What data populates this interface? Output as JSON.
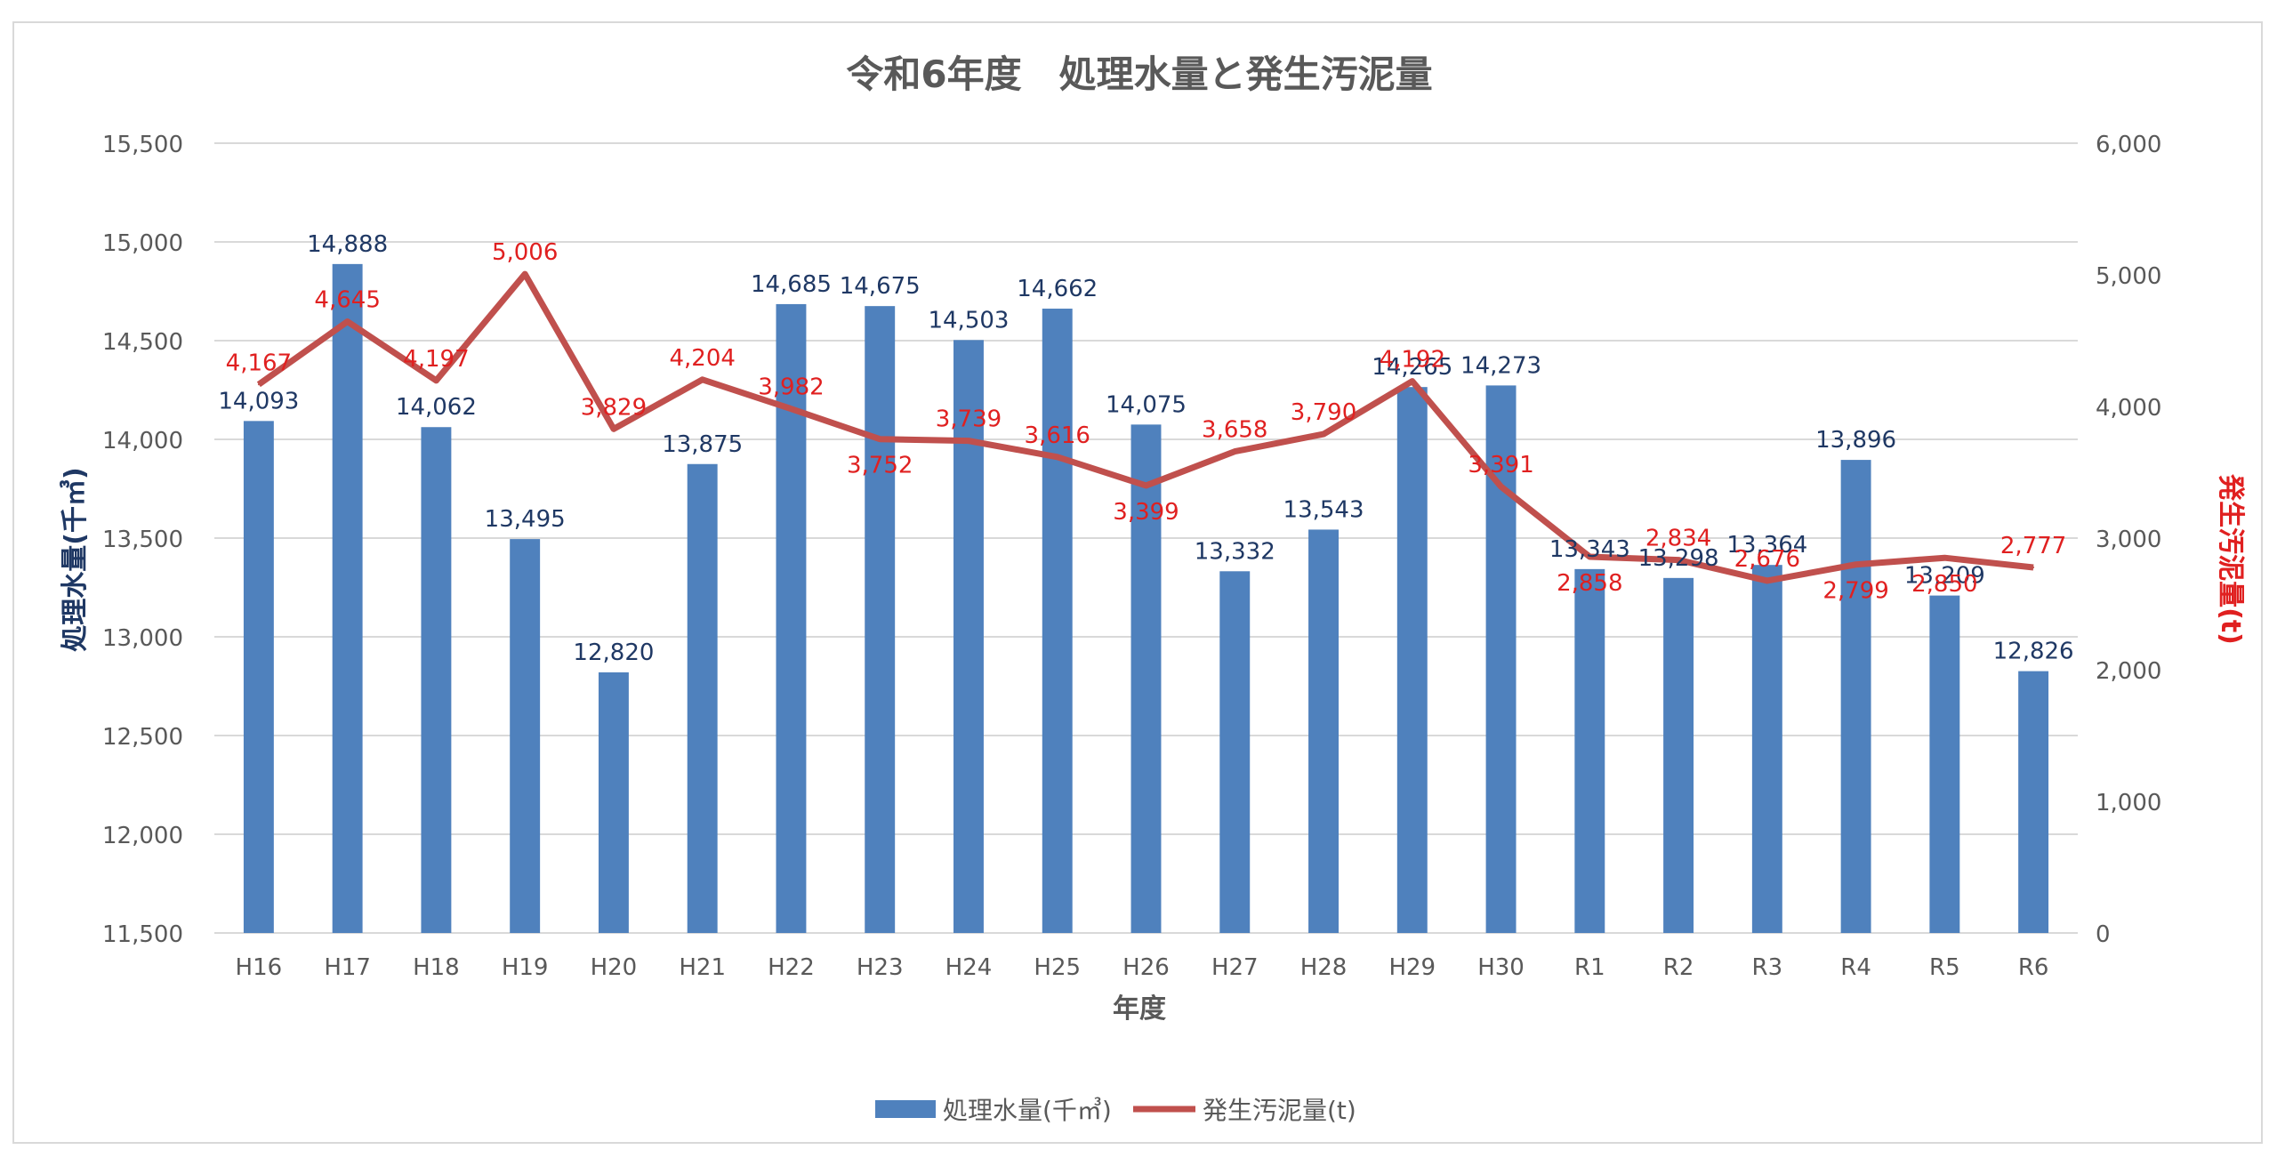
{
  "chart_data": {
    "type": "bar+line",
    "title": "令和6年度　処理水量と発生汚泥量",
    "xlabel": "年度",
    "ylabel_left": "処理水量(千㎥)",
    "ylabel_right": "発生汚泥量(t)",
    "categories": [
      "H16",
      "H17",
      "H18",
      "H19",
      "H20",
      "H21",
      "H22",
      "H23",
      "H24",
      "H25",
      "H26",
      "H27",
      "H28",
      "H29",
      "H30",
      "R1",
      "R2",
      "R3",
      "R4",
      "R5",
      "R6"
    ],
    "series": [
      {
        "name": "処理水量(千㎥)",
        "type": "bar",
        "axis": "left",
        "color": "#4f81bd",
        "label_color": "#1f3864",
        "values": [
          14093,
          14888,
          14062,
          13495,
          12820,
          13875,
          14685,
          14675,
          14503,
          14662,
          14075,
          13332,
          13543,
          14265,
          14273,
          13343,
          13298,
          13364,
          13896,
          13209,
          12826
        ],
        "labels": [
          "14,093",
          "14,888",
          "14,062",
          "13,495",
          "12,820",
          "13,875",
          "14,685",
          "14,675",
          "14,503",
          "14,662",
          "14,075",
          "13,332",
          "13,543",
          "14,265",
          "14,273",
          "13,343",
          "13,298",
          "13,364",
          "13,896",
          "13,209",
          "12,826"
        ]
      },
      {
        "name": "発生汚泥量(t)",
        "type": "line",
        "axis": "right",
        "color": "#c0504d",
        "label_color": "#e02020",
        "values": [
          4167,
          4645,
          4197,
          5006,
          3829,
          4204,
          3982,
          3752,
          3739,
          3616,
          3399,
          3658,
          3790,
          4192,
          3391,
          2858,
          2834,
          2676,
          2799,
          2850,
          2777
        ],
        "labels": [
          "4,167",
          "4,645",
          "4,197",
          "5,006",
          "3,829",
          "4,204",
          "3,982",
          "3,752",
          "3,739",
          "3,616",
          "3,399",
          "3,658",
          "3,790",
          "4,192",
          "3,391",
          "2,858",
          "2,834",
          "2,676",
          "2,799",
          "2,850",
          "2,777"
        ]
      }
    ],
    "y_left": {
      "min": 11500,
      "max": 15500,
      "step": 500,
      "ticks": [
        "11,500",
        "12,000",
        "12,500",
        "13,000",
        "13,500",
        "14,000",
        "14,500",
        "15,000",
        "15,500"
      ]
    },
    "y_right": {
      "min": 0,
      "max": 6000,
      "step": 1000,
      "ticks": [
        "0",
        "1,000",
        "2,000",
        "3,000",
        "4,000",
        "5,000",
        "6,000"
      ]
    },
    "grid": true,
    "legend_position": "bottom"
  }
}
